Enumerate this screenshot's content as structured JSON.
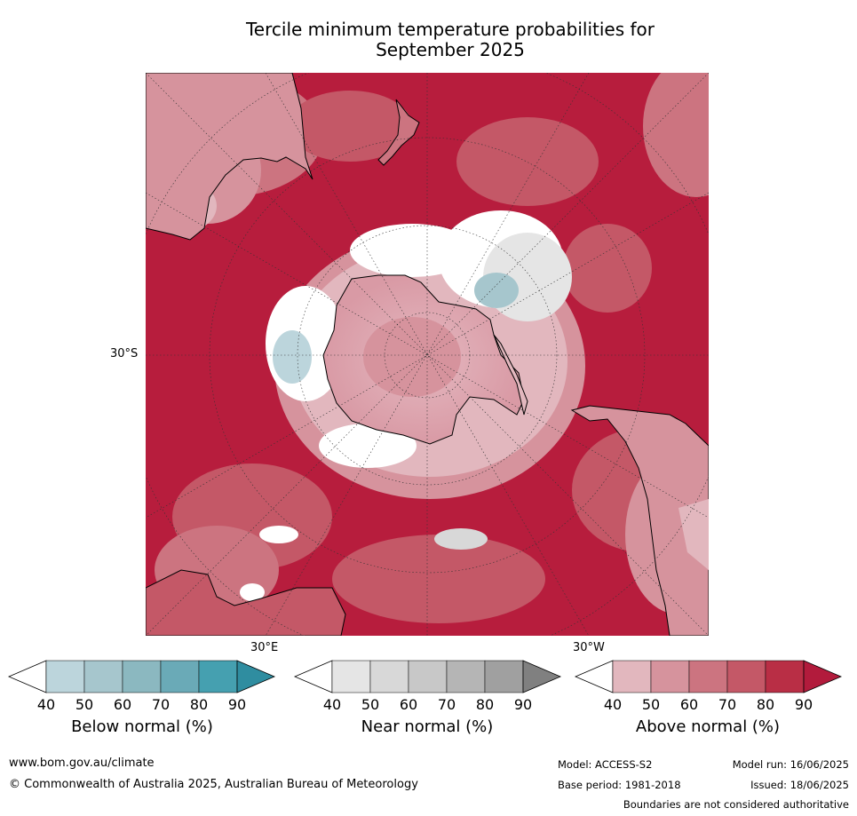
{
  "title": {
    "line1": "Tercile minimum temperature probabilities for",
    "line2": "September 2025"
  },
  "map": {
    "lat_label": "30°S",
    "lon_label_east": "30°E",
    "lon_label_west": "30°W"
  },
  "colorbars": [
    {
      "title": "Below normal (%)",
      "ticks": [
        "40",
        "50",
        "60",
        "70",
        "80",
        "90"
      ],
      "colors": [
        "#ffffff",
        "#bcd5dc",
        "#a6c6cd",
        "#8bb8c0",
        "#6aaab7",
        "#45a0b0",
        "#2f8da0"
      ]
    },
    {
      "title": "Near normal (%)",
      "ticks": [
        "40",
        "50",
        "60",
        "70",
        "80",
        "90"
      ],
      "colors": [
        "#ffffff",
        "#e5e5e5",
        "#d8d8d8",
        "#c8c8c8",
        "#b5b5b5",
        "#a0a0a0",
        "#808080"
      ]
    },
    {
      "title": "Above normal (%)",
      "ticks": [
        "40",
        "50",
        "60",
        "70",
        "80",
        "90"
      ],
      "colors": [
        "#ffffff",
        "#e2b7be",
        "#d6939d",
        "#cc7480",
        "#c45867",
        "#b92e45",
        "#b21b3c"
      ]
    }
  ],
  "footer": {
    "website": "www.bom.gov.au/climate",
    "copyright": "© Commonwealth of Australia 2025, Australian Bureau of Meteorology",
    "model": "Model: ACCESS-S2",
    "base_period": "Base period: 1981-2018",
    "model_run": "Model run: 16/06/2025",
    "issued": "Issued: 18/06/2025",
    "disclaimer": "Boundaries are not considered authoritative"
  }
}
